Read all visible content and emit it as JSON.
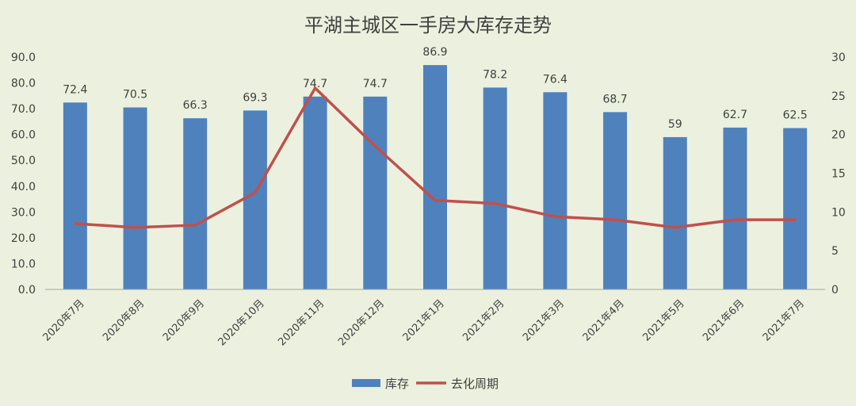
{
  "chart_data": {
    "type": "bar",
    "title": "平湖主城区一手房大库存走势",
    "categories": [
      "2020年7月",
      "2020年8月",
      "2020年9月",
      "2020年10月",
      "2020年11月",
      "2020年12月",
      "2021年1月",
      "2021年2月",
      "2021年3月",
      "2021年4月",
      "2021年5月",
      "2021年6月",
      "2021年7月"
    ],
    "series": [
      {
        "name": "库存",
        "type": "bar",
        "axis": "left",
        "color": "#4f81bd",
        "values": [
          72.4,
          70.5,
          66.3,
          69.3,
          74.7,
          74.7,
          86.9,
          78.2,
          76.4,
          68.7,
          59,
          62.7,
          62.5
        ],
        "labels": [
          "72.4",
          "70.5",
          "66.3",
          "69.3",
          "74.7",
          "74.7",
          "86.9",
          "78.2",
          "76.4",
          "68.7",
          "59",
          "62.7",
          "62.5"
        ]
      },
      {
        "name": "去化周期",
        "type": "line",
        "axis": "right",
        "color": "#c0504d",
        "values": [
          8.5,
          8.0,
          8.3,
          12.5,
          26.0,
          18.5,
          11.5,
          11.1,
          9.4,
          9.0,
          8.0,
          9.0,
          9.0
        ]
      }
    ],
    "y_left": {
      "ylim": [
        0,
        90
      ],
      "ticks": [
        "0.0",
        "10.0",
        "20.0",
        "30.0",
        "40.0",
        "50.0",
        "60.0",
        "70.0",
        "80.0",
        "90.0"
      ]
    },
    "y_right": {
      "ylim": [
        0,
        30
      ],
      "ticks": [
        "0",
        "5",
        "10",
        "15",
        "20",
        "25",
        "30"
      ]
    },
    "grid": false,
    "legend": "bottom"
  }
}
